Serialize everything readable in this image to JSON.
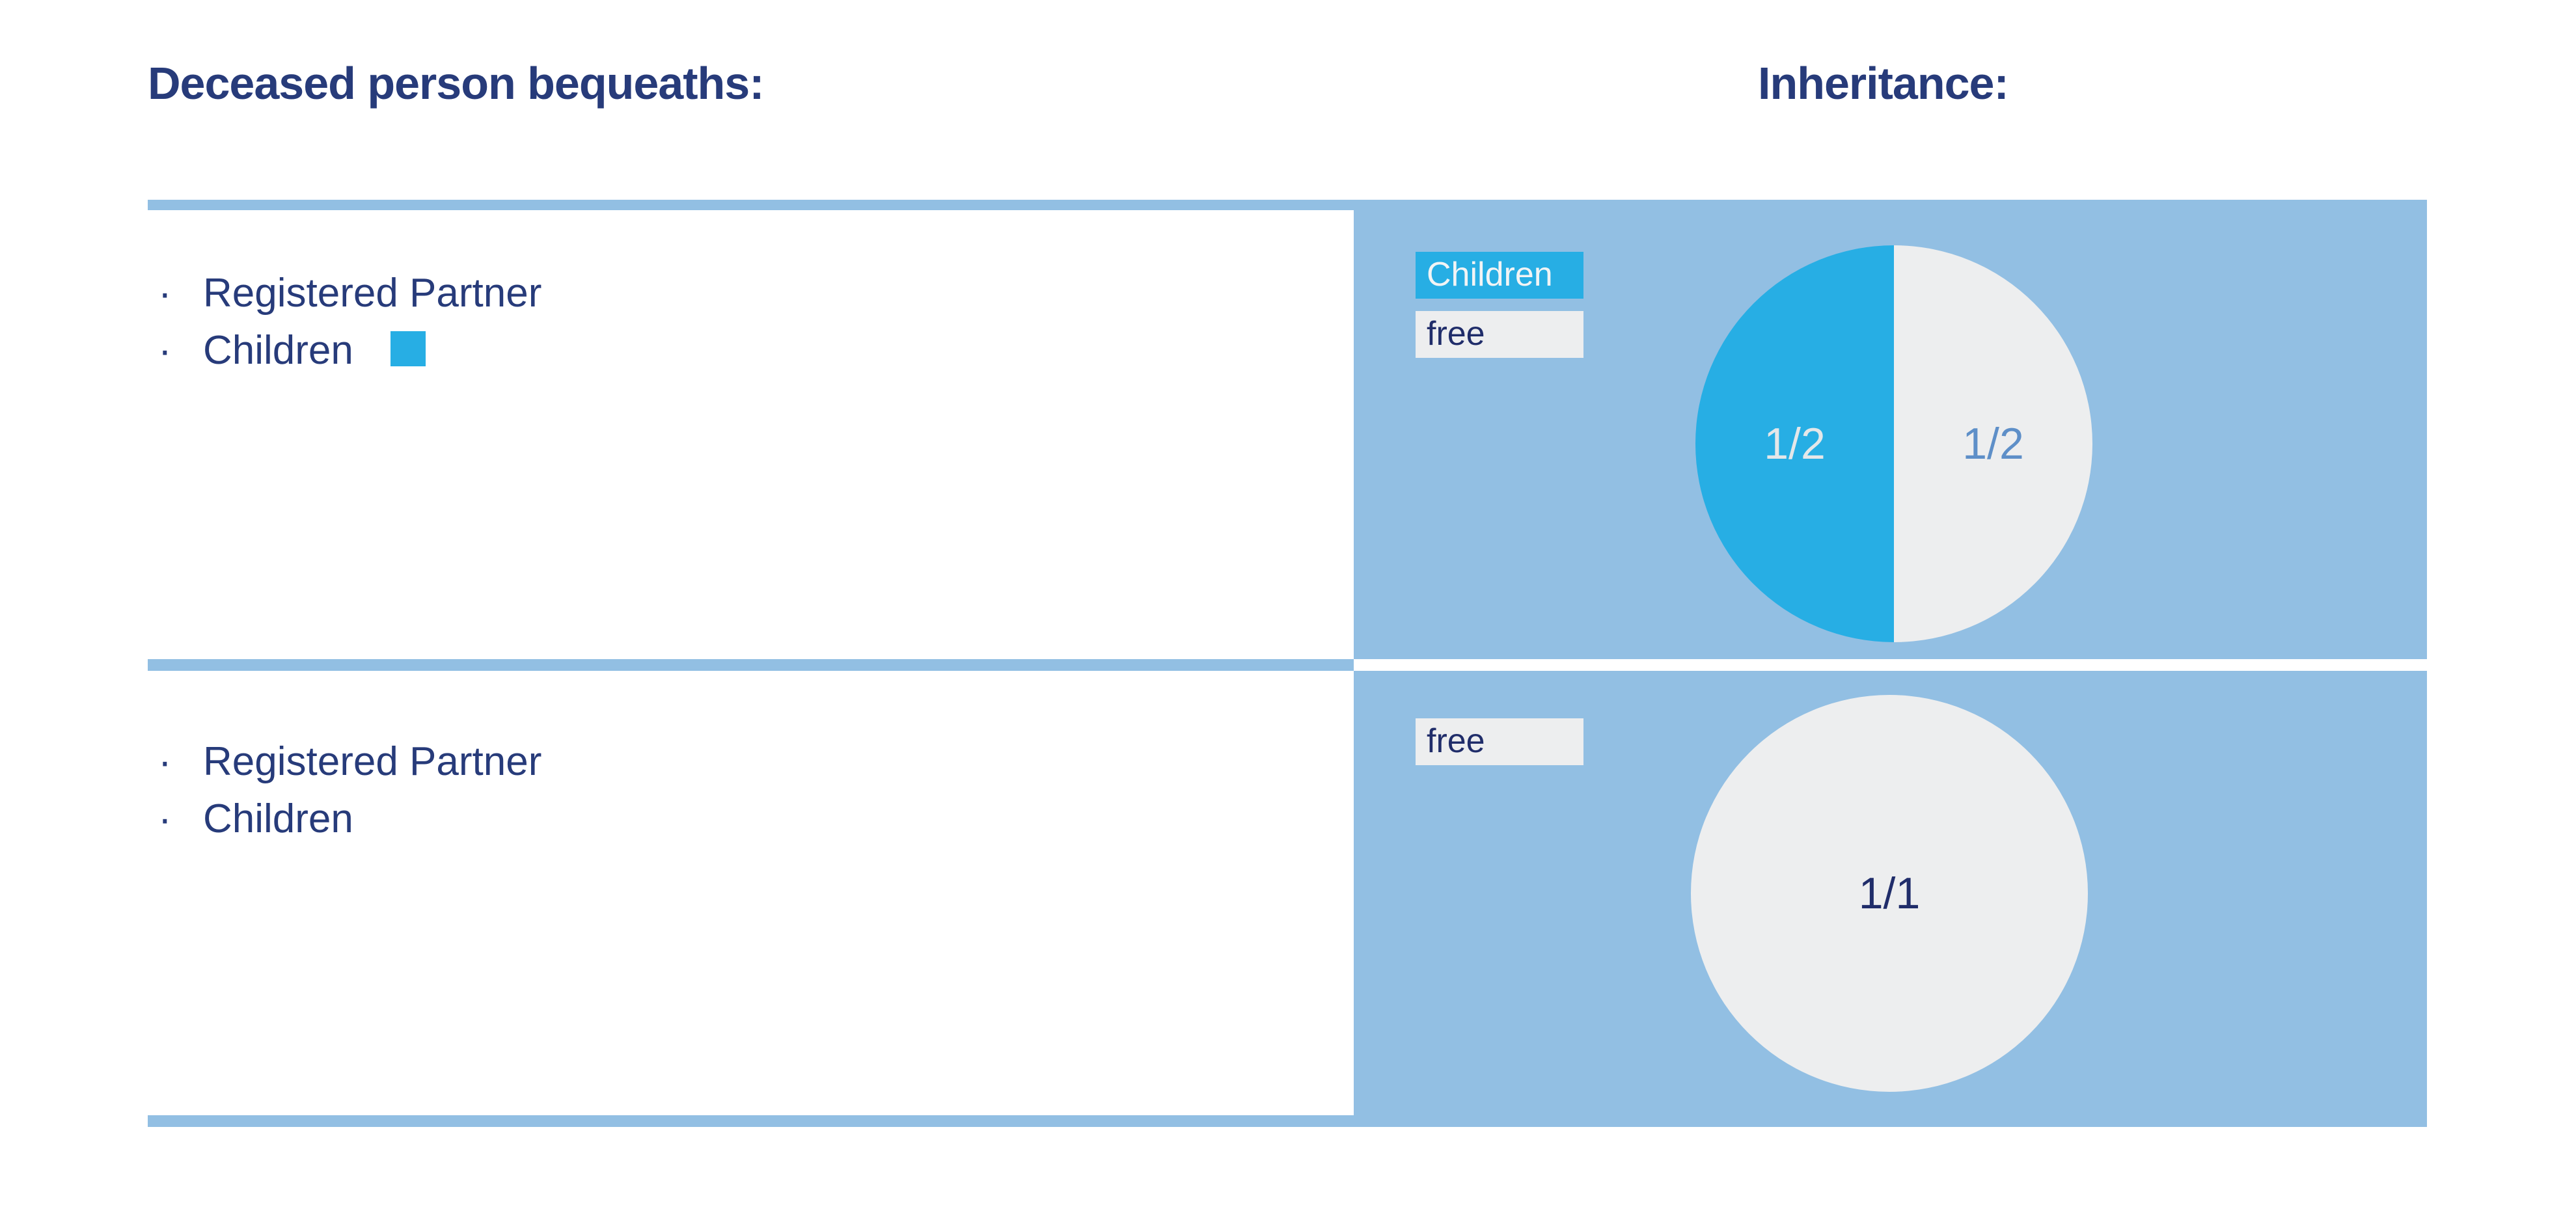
{
  "colors": {
    "navy": "#273b7a",
    "navy-dark": "#202d6a",
    "panel-blue": "#92bfe3",
    "cyan": "#27aee4",
    "gray": "#edeeef",
    "frac-on-cyan": "#e4e7e9",
    "frac-on-gray": "#5e8fc8"
  },
  "headers": {
    "bequeaths": "Deceased person bequeaths:",
    "inheritance": "Inheritance:"
  },
  "rows": [
    {
      "bequeaths": [
        "Registered Partner",
        "Children"
      ],
      "children_marker": true,
      "legend": {
        "children": "Children",
        "free": "free"
      },
      "shares": {
        "children": "1/2",
        "free": "1/2"
      }
    },
    {
      "bequeaths": [
        "Registered Partner",
        "Children"
      ],
      "children_marker": false,
      "legend": {
        "free": "free"
      },
      "shares": {
        "free": "1/1"
      }
    }
  ],
  "chart_data": [
    {
      "type": "pie",
      "labels": [
        "Children",
        "free"
      ],
      "values": [
        0.5,
        0.5
      ],
      "data_labels": [
        "1/2",
        "1/2"
      ],
      "colors": [
        "#27aee4",
        "#edeeef"
      ],
      "legend_position": "top-left",
      "title": ""
    },
    {
      "type": "pie",
      "labels": [
        "free"
      ],
      "values": [
        1.0
      ],
      "data_labels": [
        "1/1"
      ],
      "colors": [
        "#edeeef"
      ],
      "legend_position": "top-left",
      "title": ""
    }
  ]
}
